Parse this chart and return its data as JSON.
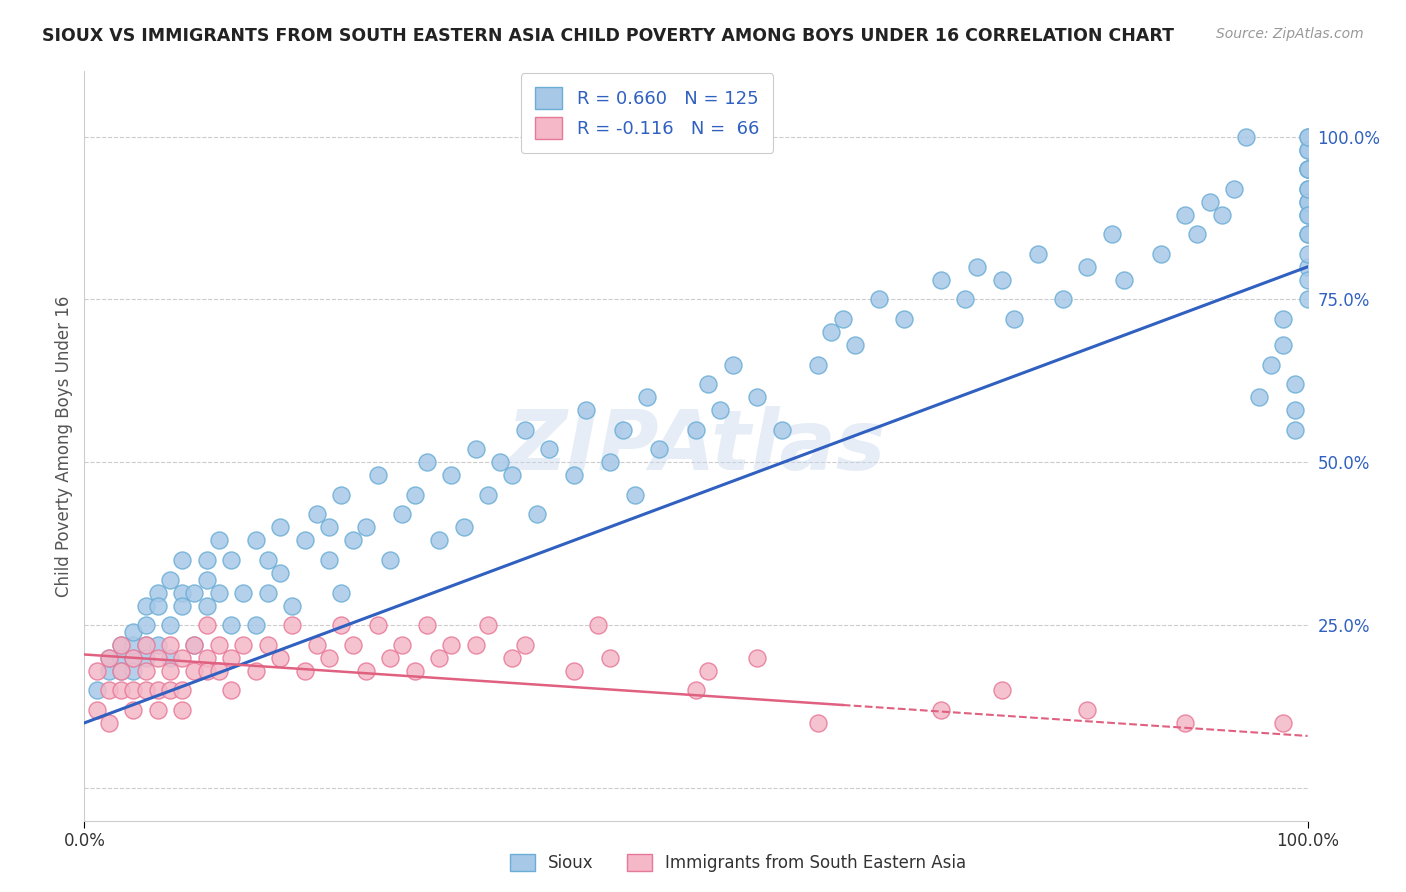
{
  "title": "SIOUX VS IMMIGRANTS FROM SOUTH EASTERN ASIA CHILD POVERTY AMONG BOYS UNDER 16 CORRELATION CHART",
  "source": "Source: ZipAtlas.com",
  "ylabel": "Child Poverty Among Boys Under 16",
  "xlim": [
    0.0,
    1.0
  ],
  "ylim": [
    -0.05,
    1.1
  ],
  "ytick_positions": [
    0.0,
    0.25,
    0.5,
    0.75,
    1.0
  ],
  "ytick_labels_right": [
    "",
    "25.0%",
    "50.0%",
    "75.0%",
    "100.0%"
  ],
  "blue_color": "#a8c8e8",
  "blue_edge": "#6aaed6",
  "pink_color": "#f4b8c8",
  "pink_edge": "#e87898",
  "blue_line_color": "#3060c0",
  "pink_line_color": "#e06080",
  "legend_blue_r": "R = 0.660",
  "legend_blue_n": "N = 125",
  "legend_pink_r": "R = -0.116",
  "legend_pink_n": "N =  66",
  "watermark": "ZIPAtlas",
  "blue_scatter_x": [
    0.01,
    0.02,
    0.02,
    0.03,
    0.03,
    0.03,
    0.04,
    0.04,
    0.04,
    0.04,
    0.05,
    0.05,
    0.05,
    0.05,
    0.06,
    0.06,
    0.06,
    0.07,
    0.07,
    0.07,
    0.08,
    0.08,
    0.08,
    0.09,
    0.09,
    0.1,
    0.1,
    0.1,
    0.11,
    0.11,
    0.12,
    0.12,
    0.13,
    0.14,
    0.14,
    0.15,
    0.15,
    0.16,
    0.16,
    0.17,
    0.18,
    0.19,
    0.2,
    0.2,
    0.21,
    0.21,
    0.22,
    0.23,
    0.24,
    0.25,
    0.26,
    0.27,
    0.28,
    0.29,
    0.3,
    0.31,
    0.32,
    0.33,
    0.34,
    0.35,
    0.36,
    0.37,
    0.38,
    0.4,
    0.41,
    0.43,
    0.44,
    0.45,
    0.46,
    0.47,
    0.5,
    0.51,
    0.52,
    0.53,
    0.55,
    0.57,
    0.6,
    0.61,
    0.62,
    0.63,
    0.65,
    0.67,
    0.7,
    0.72,
    0.73,
    0.75,
    0.76,
    0.78,
    0.8,
    0.82,
    0.84,
    0.85,
    0.88,
    0.9,
    0.91,
    0.92,
    0.93,
    0.94,
    0.95,
    0.96,
    0.97,
    0.98,
    0.98,
    0.99,
    0.99,
    0.99,
    1.0,
    1.0,
    1.0,
    1.0,
    1.0,
    1.0,
    1.0,
    1.0,
    1.0,
    1.0,
    1.0,
    1.0,
    1.0,
    1.0,
    1.0,
    1.0,
    1.0,
    1.0,
    1.0
  ],
  "blue_scatter_y": [
    0.15,
    0.18,
    0.2,
    0.22,
    0.2,
    0.18,
    0.2,
    0.22,
    0.24,
    0.18,
    0.25,
    0.22,
    0.28,
    0.2,
    0.3,
    0.22,
    0.28,
    0.32,
    0.2,
    0.25,
    0.3,
    0.28,
    0.35,
    0.22,
    0.3,
    0.35,
    0.28,
    0.32,
    0.3,
    0.38,
    0.25,
    0.35,
    0.3,
    0.38,
    0.25,
    0.35,
    0.3,
    0.33,
    0.4,
    0.28,
    0.38,
    0.42,
    0.35,
    0.4,
    0.3,
    0.45,
    0.38,
    0.4,
    0.48,
    0.35,
    0.42,
    0.45,
    0.5,
    0.38,
    0.48,
    0.4,
    0.52,
    0.45,
    0.5,
    0.48,
    0.55,
    0.42,
    0.52,
    0.48,
    0.58,
    0.5,
    0.55,
    0.45,
    0.6,
    0.52,
    0.55,
    0.62,
    0.58,
    0.65,
    0.6,
    0.55,
    0.65,
    0.7,
    0.72,
    0.68,
    0.75,
    0.72,
    0.78,
    0.75,
    0.8,
    0.78,
    0.72,
    0.82,
    0.75,
    0.8,
    0.85,
    0.78,
    0.82,
    0.88,
    0.85,
    0.9,
    0.88,
    0.92,
    1.0,
    0.6,
    0.65,
    0.68,
    0.72,
    0.55,
    0.62,
    0.58,
    0.85,
    0.9,
    0.88,
    0.92,
    0.95,
    0.98,
    1.0,
    0.85,
    0.75,
    0.8,
    0.9,
    0.82,
    0.95,
    0.78,
    0.88,
    0.92,
    0.98,
    1.0,
    0.95
  ],
  "pink_scatter_x": [
    0.01,
    0.01,
    0.02,
    0.02,
    0.02,
    0.03,
    0.03,
    0.03,
    0.04,
    0.04,
    0.04,
    0.05,
    0.05,
    0.05,
    0.06,
    0.06,
    0.06,
    0.07,
    0.07,
    0.07,
    0.08,
    0.08,
    0.08,
    0.09,
    0.09,
    0.1,
    0.1,
    0.1,
    0.11,
    0.11,
    0.12,
    0.12,
    0.13,
    0.14,
    0.15,
    0.16,
    0.17,
    0.18,
    0.19,
    0.2,
    0.21,
    0.22,
    0.23,
    0.24,
    0.25,
    0.26,
    0.27,
    0.28,
    0.29,
    0.3,
    0.32,
    0.33,
    0.35,
    0.36,
    0.4,
    0.42,
    0.43,
    0.5,
    0.51,
    0.55,
    0.6,
    0.7,
    0.75,
    0.82,
    0.9,
    0.98
  ],
  "pink_scatter_y": [
    0.18,
    0.12,
    0.2,
    0.15,
    0.1,
    0.18,
    0.22,
    0.15,
    0.15,
    0.2,
    0.12,
    0.18,
    0.22,
    0.15,
    0.15,
    0.2,
    0.12,
    0.18,
    0.22,
    0.15,
    0.15,
    0.2,
    0.12,
    0.18,
    0.22,
    0.2,
    0.25,
    0.18,
    0.18,
    0.22,
    0.2,
    0.15,
    0.22,
    0.18,
    0.22,
    0.2,
    0.25,
    0.18,
    0.22,
    0.2,
    0.25,
    0.22,
    0.18,
    0.25,
    0.2,
    0.22,
    0.18,
    0.25,
    0.2,
    0.22,
    0.22,
    0.25,
    0.2,
    0.22,
    0.18,
    0.25,
    0.2,
    0.15,
    0.18,
    0.2,
    0.1,
    0.12,
    0.15,
    0.12,
    0.1,
    0.1
  ],
  "blue_line_y_start": 0.1,
  "blue_line_y_end": 0.8,
  "pink_line_y_start": 0.205,
  "pink_line_y_end": 0.08,
  "background_color": "#ffffff",
  "grid_color": "#cccccc",
  "legend_label_sioux": "Sioux",
  "legend_label_immigrants": "Immigrants from South Eastern Asia"
}
